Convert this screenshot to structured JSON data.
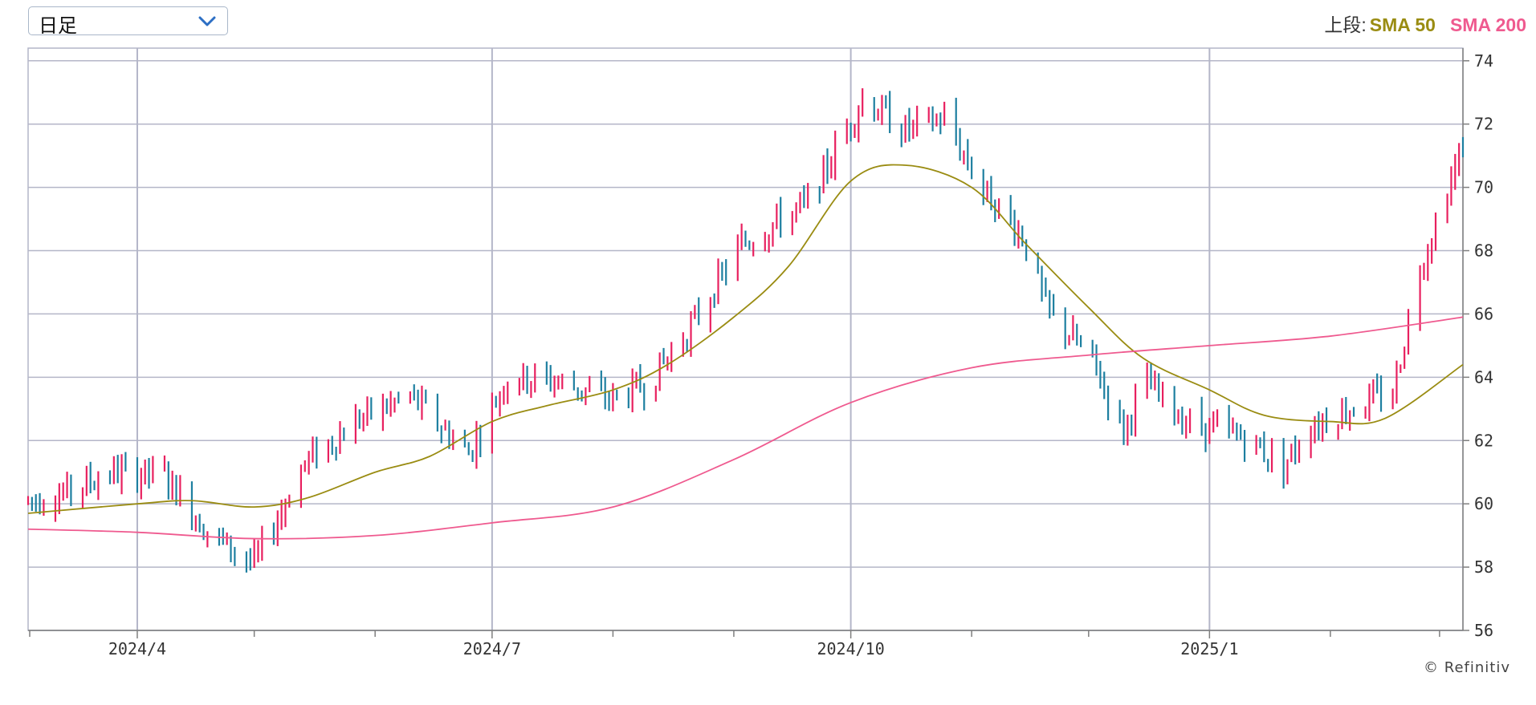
{
  "period_select": {
    "value": "日足",
    "icon": "chevron-down-icon"
  },
  "legend": {
    "prefix": "上段:",
    "items": [
      {
        "label": "SMA 50",
        "color": "#9a8c12"
      },
      {
        "label": "SMA 200",
        "color": "#ef5a8f"
      }
    ]
  },
  "credit": "© Refinitiv",
  "chart_data": {
    "type": "ohlc",
    "ylim": [
      56,
      74.4
    ],
    "ytick_labels": [
      "56",
      "58",
      "60",
      "62",
      "64",
      "66",
      "68",
      "70",
      "72",
      "74"
    ],
    "x_range": [
      "2024-03-04",
      "2025-03-07"
    ],
    "xtick_labels": [
      {
        "date": "2024-04-01",
        "label": "2024/4"
      },
      {
        "date": "2024-07-01",
        "label": "2024/7"
      },
      {
        "date": "2024-10-01",
        "label": "2024/10"
      },
      {
        "date": "2025-01-01",
        "label": "2025/1"
      }
    ],
    "minor_ticks": [
      "2024-03-01",
      "2024-05-01",
      "2024-06-01",
      "2024-08-01",
      "2024-09-01",
      "2024-11-01",
      "2024-12-01",
      "2025-02-01",
      "2025-03-01"
    ],
    "colors": {
      "up": "#e8205f",
      "down": "#1d7fa0",
      "grid": "#b4b6c8",
      "axis": "#7f7f7f"
    },
    "grid": true,
    "price_anchors": [
      [
        "2024-03-04",
        60.1
      ],
      [
        "2024-03-15",
        60.4
      ],
      [
        "2024-03-25",
        61.0
      ],
      [
        "2024-04-08",
        60.9
      ],
      [
        "2024-04-20",
        59.0
      ],
      [
        "2024-05-01",
        58.1
      ],
      [
        "2024-05-14",
        61.3
      ],
      [
        "2024-05-28",
        62.7
      ],
      [
        "2024-06-10",
        63.4
      ],
      [
        "2024-06-25",
        61.6
      ],
      [
        "2024-07-05",
        64.0
      ],
      [
        "2024-07-17",
        63.9
      ],
      [
        "2024-08-01",
        63.3
      ],
      [
        "2024-08-10",
        63.8
      ],
      [
        "2024-08-20",
        65.4
      ],
      [
        "2024-09-03",
        68.2
      ],
      [
        "2024-09-20",
        69.5
      ],
      [
        "2024-10-04",
        72.8
      ],
      [
        "2024-10-15",
        71.8
      ],
      [
        "2024-10-25",
        72.2
      ],
      [
        "2024-11-04",
        69.9
      ],
      [
        "2024-11-14",
        68.5
      ],
      [
        "2024-11-20",
        66.2
      ],
      [
        "2024-12-02",
        64.5
      ],
      [
        "2024-12-10",
        62.3
      ],
      [
        "2024-12-15",
        63.9
      ],
      [
        "2024-12-26",
        62.6
      ],
      [
        "2025-01-10",
        62.1
      ],
      [
        "2025-01-20",
        61.2
      ],
      [
        "2025-01-27",
        62.5
      ],
      [
        "2025-02-10",
        63.2
      ],
      [
        "2025-02-17",
        63.5
      ],
      [
        "2025-02-24",
        67.5
      ],
      [
        "2025-03-07",
        71.3
      ]
    ],
    "series": [
      {
        "name": "SMA 50",
        "color": "#9a8c12",
        "points": [
          [
            "2024-03-04",
            59.7
          ],
          [
            "2024-04-01",
            60.0
          ],
          [
            "2024-04-15",
            60.1
          ],
          [
            "2024-05-01",
            59.9
          ],
          [
            "2024-05-15",
            60.2
          ],
          [
            "2024-06-01",
            61.0
          ],
          [
            "2024-06-15",
            61.5
          ],
          [
            "2024-07-01",
            62.6
          ],
          [
            "2024-07-15",
            63.1
          ],
          [
            "2024-08-01",
            63.6
          ],
          [
            "2024-08-15",
            64.4
          ],
          [
            "2024-09-01",
            65.9
          ],
          [
            "2024-09-15",
            67.5
          ],
          [
            "2024-10-01",
            70.2
          ],
          [
            "2024-10-15",
            70.7
          ],
          [
            "2024-11-01",
            70.0
          ],
          [
            "2024-11-15",
            68.2
          ],
          [
            "2024-12-01",
            66.2
          ],
          [
            "2024-12-15",
            64.6
          ],
          [
            "2025-01-01",
            63.6
          ],
          [
            "2025-01-15",
            62.8
          ],
          [
            "2025-02-01",
            62.6
          ],
          [
            "2025-02-15",
            62.7
          ],
          [
            "2025-03-07",
            64.4
          ]
        ]
      },
      {
        "name": "SMA 200",
        "color": "#ef5a8f",
        "points": [
          [
            "2024-03-04",
            59.2
          ],
          [
            "2024-04-01",
            59.1
          ],
          [
            "2024-05-01",
            58.9
          ],
          [
            "2024-06-01",
            59.0
          ],
          [
            "2024-07-01",
            59.4
          ],
          [
            "2024-08-01",
            59.9
          ],
          [
            "2024-09-01",
            61.4
          ],
          [
            "2024-10-01",
            63.2
          ],
          [
            "2024-11-01",
            64.3
          ],
          [
            "2024-12-01",
            64.7
          ],
          [
            "2025-01-01",
            65.0
          ],
          [
            "2025-02-01",
            65.3
          ],
          [
            "2025-03-07",
            65.9
          ]
        ]
      }
    ]
  }
}
